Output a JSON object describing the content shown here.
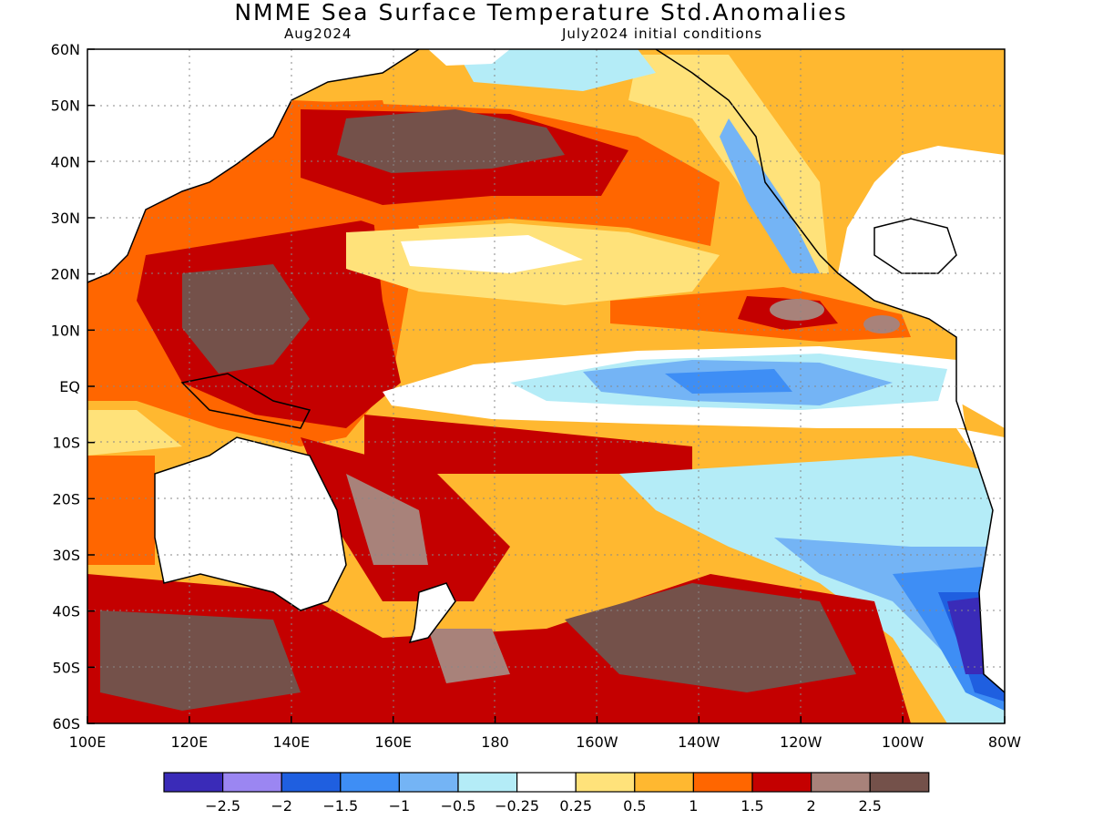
{
  "header": {
    "title": "NMME Sea Surface Temperature Std.Anomalies",
    "forecast_month": "Aug2024",
    "initial_conditions": "July2024 initial conditions"
  },
  "axes": {
    "lat_labels": [
      "60N",
      "50N",
      "40N",
      "30N",
      "20N",
      "10N",
      "EQ",
      "10S",
      "20S",
      "30S",
      "40S",
      "50S",
      "60S"
    ],
    "lon_labels": [
      "100E",
      "120E",
      "140E",
      "160E",
      "180",
      "160W",
      "140W",
      "120W",
      "100W",
      "80W"
    ]
  },
  "colorbar": {
    "colors": [
      "#3a2bb8",
      "#9b86f2",
      "#1f5fe0",
      "#3e8ef5",
      "#74b4f5",
      "#b4ecf7",
      "#ffffff",
      "#ffe27a",
      "#ffb830",
      "#ff6600",
      "#c40000",
      "#a8827a",
      "#74514a"
    ],
    "tick_labels": [
      "−2.5",
      "−2",
      "−1.5",
      "−1",
      "−0.5",
      "−0.25",
      "0.25",
      "0.5",
      "1",
      "1.5",
      "2",
      "2.5"
    ]
  },
  "colors": {
    "strong_warm": "#74514a",
    "warm": "#c40000",
    "cool": "#3e8ef5",
    "land_outline": "#000000"
  }
}
